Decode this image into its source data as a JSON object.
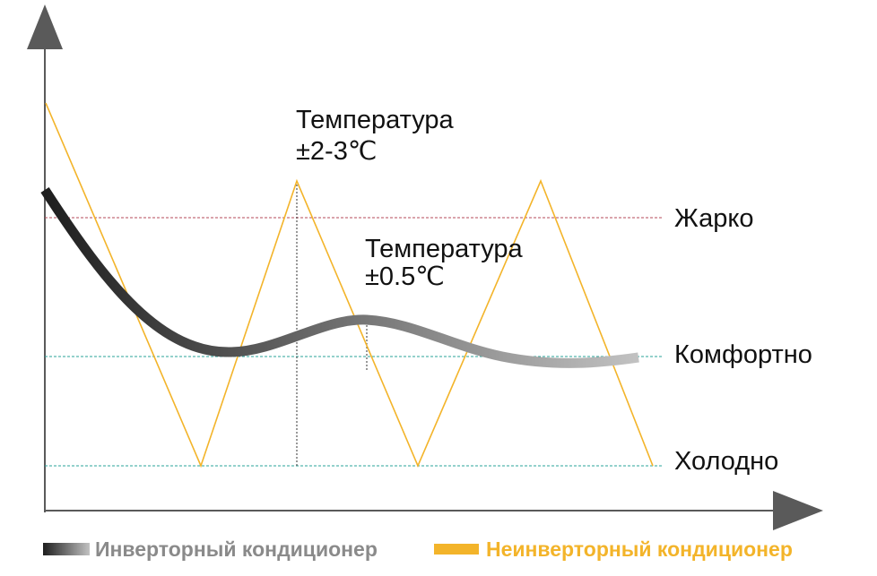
{
  "levels": {
    "hot": "Жарко",
    "comfort": "Комфортно",
    "cold": "Холодно"
  },
  "annotations": {
    "non_inverter": {
      "line1": "Температура",
      "line2": "±2-3℃"
    },
    "inverter": {
      "line1": "Температура",
      "line2": "±0.5℃"
    }
  },
  "legend": {
    "inverter": "Инверторный кондиционер",
    "non_inverter": "Неинверторный кондиционер"
  },
  "colors": {
    "axis": "#5a5a5a",
    "inverter_dark": "#1e1e1e",
    "inverter_light": "#c2c2c2",
    "non_inverter": "#f3b42a",
    "hot_line": "#b5485a",
    "comfort_line": "#2aa39a",
    "cold_line": "#2aa39a",
    "legend_inverter_text": "#8a8a8a"
  }
}
